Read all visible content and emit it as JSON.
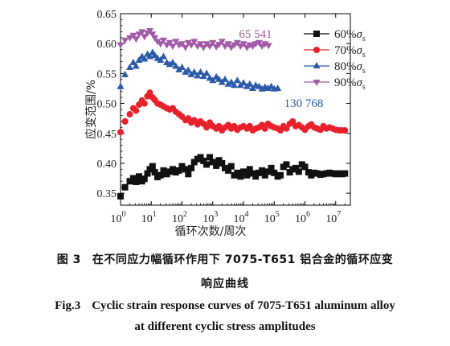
{
  "chart_data": {
    "type": "scatter",
    "title": "",
    "xlabel": "循环次数/周次",
    "ylabel": "应变范围/%",
    "xscale": "log",
    "xlim": [
      1,
      30000000
    ],
    "ylim": [
      0.33,
      0.65
    ],
    "xticks": [
      {
        "value": 1,
        "base": "10",
        "exp": "0"
      },
      {
        "value": 10,
        "base": "10",
        "exp": "1"
      },
      {
        "value": 100,
        "base": "10",
        "exp": "2"
      },
      {
        "value": 1000,
        "base": "10",
        "exp": "3"
      },
      {
        "value": 10000,
        "base": "10",
        "exp": "4"
      },
      {
        "value": 100000,
        "base": "10",
        "exp": "5"
      },
      {
        "value": 1000000,
        "base": "10",
        "exp": "6"
      },
      {
        "value": 10000000,
        "base": "10",
        "exp": "7"
      }
    ],
    "yticks": [
      {
        "value": 0.35,
        "label": "0.35"
      },
      {
        "value": 0.4,
        "label": "0.40"
      },
      {
        "value": 0.45,
        "label": "0.45"
      },
      {
        "value": 0.5,
        "label": "0.50"
      },
      {
        "value": 0.55,
        "label": "0.55"
      },
      {
        "value": 0.6,
        "label": "0.60"
      },
      {
        "value": 0.65,
        "label": "0.65"
      }
    ],
    "grid": false,
    "legend_position": "top-right",
    "annotations": [
      {
        "text": "65 541",
        "near_series": "90%σs",
        "color": "#a05aa6"
      },
      {
        "text": "130 768",
        "near_series": "80%σs",
        "color": "#2a5aa8"
      }
    ],
    "series": [
      {
        "name": "60%σs",
        "label_main": "60%",
        "label_sym": "σ",
        "label_sub": "s",
        "marker": "square",
        "color": "#111111",
        "points": [
          [
            1,
            0.345
          ],
          [
            1.4,
            0.36
          ],
          [
            2,
            0.37
          ],
          [
            2.6,
            0.375
          ],
          [
            3.2,
            0.369
          ],
          [
            4,
            0.378
          ],
          [
            5,
            0.37
          ],
          [
            6,
            0.374
          ],
          [
            7.5,
            0.383
          ],
          [
            9,
            0.39
          ],
          [
            11,
            0.395
          ],
          [
            13,
            0.385
          ],
          [
            16,
            0.377
          ],
          [
            20,
            0.38
          ],
          [
            25,
            0.388
          ],
          [
            32,
            0.382
          ],
          [
            40,
            0.386
          ],
          [
            50,
            0.39
          ],
          [
            63,
            0.385
          ],
          [
            80,
            0.388
          ],
          [
            100,
            0.395
          ],
          [
            130,
            0.39
          ],
          [
            160,
            0.382
          ],
          [
            200,
            0.392
          ],
          [
            250,
            0.402
          ],
          [
            320,
            0.407
          ],
          [
            400,
            0.41
          ],
          [
            500,
            0.404
          ],
          [
            630,
            0.398
          ],
          [
            800,
            0.41
          ],
          [
            1000,
            0.402
          ],
          [
            1300,
            0.396
          ],
          [
            1600,
            0.405
          ],
          [
            2000,
            0.4
          ],
          [
            2500,
            0.392
          ],
          [
            3200,
            0.388
          ],
          [
            4000,
            0.395
          ],
          [
            5000,
            0.38
          ],
          [
            6300,
            0.384
          ],
          [
            8000,
            0.378
          ],
          [
            10000,
            0.386
          ],
          [
            13000,
            0.38
          ],
          [
            16000,
            0.39
          ],
          [
            20000,
            0.383
          ],
          [
            25000,
            0.378
          ],
          [
            32000,
            0.384
          ],
          [
            40000,
            0.388
          ],
          [
            50000,
            0.38
          ],
          [
            63000,
            0.386
          ],
          [
            80000,
            0.392
          ],
          [
            100000,
            0.384
          ],
          [
            130000,
            0.378
          ],
          [
            160000,
            0.38
          ],
          [
            200000,
            0.394
          ],
          [
            250000,
            0.398
          ],
          [
            320000,
            0.385
          ],
          [
            400000,
            0.39
          ],
          [
            500000,
            0.392
          ],
          [
            630000,
            0.386
          ],
          [
            800000,
            0.398
          ],
          [
            1000000,
            0.394
          ],
          [
            1300000,
            0.385
          ],
          [
            1600000,
            0.38
          ],
          [
            2000000,
            0.384
          ],
          [
            2500000,
            0.383
          ],
          [
            3200000,
            0.381
          ],
          [
            4000000,
            0.382
          ],
          [
            5000000,
            0.383
          ],
          [
            6300000,
            0.384
          ],
          [
            8000000,
            0.383
          ],
          [
            10000000,
            0.382
          ],
          [
            13000000,
            0.383
          ],
          [
            16000000,
            0.382
          ],
          [
            20000000,
            0.383
          ]
        ]
      },
      {
        "name": "70%σs",
        "label_main": "70%",
        "label_sym": "σ",
        "label_sub": "s",
        "marker": "circle",
        "color": "#e8202a",
        "points": [
          [
            1,
            0.452
          ],
          [
            1.4,
            0.47
          ],
          [
            2,
            0.482
          ],
          [
            2.6,
            0.492
          ],
          [
            3.2,
            0.488
          ],
          [
            4,
            0.498
          ],
          [
            5,
            0.505
          ],
          [
            6,
            0.5
          ],
          [
            7.5,
            0.512
          ],
          [
            9,
            0.518
          ],
          [
            11,
            0.51
          ],
          [
            13,
            0.506
          ],
          [
            16,
            0.5
          ],
          [
            20,
            0.498
          ],
          [
            25,
            0.495
          ],
          [
            32,
            0.492
          ],
          [
            40,
            0.49
          ],
          [
            50,
            0.492
          ],
          [
            63,
            0.486
          ],
          [
            80,
            0.482
          ],
          [
            100,
            0.478
          ],
          [
            130,
            0.472
          ],
          [
            160,
            0.475
          ],
          [
            200,
            0.468
          ],
          [
            250,
            0.472
          ],
          [
            320,
            0.465
          ],
          [
            400,
            0.47
          ],
          [
            500,
            0.466
          ],
          [
            630,
            0.46
          ],
          [
            800,
            0.468
          ],
          [
            1000,
            0.462
          ],
          [
            1300,
            0.458
          ],
          [
            1600,
            0.462
          ],
          [
            2000,
            0.455
          ],
          [
            2500,
            0.46
          ],
          [
            3200,
            0.464
          ],
          [
            4000,
            0.458
          ],
          [
            5000,
            0.462
          ],
          [
            6300,
            0.456
          ],
          [
            8000,
            0.46
          ],
          [
            10000,
            0.462
          ],
          [
            13000,
            0.458
          ],
          [
            16000,
            0.462
          ],
          [
            20000,
            0.455
          ],
          [
            25000,
            0.458
          ],
          [
            32000,
            0.46
          ],
          [
            40000,
            0.464
          ],
          [
            50000,
            0.458
          ],
          [
            63000,
            0.466
          ],
          [
            80000,
            0.462
          ],
          [
            100000,
            0.46
          ],
          [
            130000,
            0.458
          ],
          [
            160000,
            0.455
          ],
          [
            200000,
            0.462
          ],
          [
            250000,
            0.458
          ],
          [
            320000,
            0.466
          ],
          [
            400000,
            0.47
          ],
          [
            500000,
            0.462
          ],
          [
            630000,
            0.464
          ],
          [
            800000,
            0.46
          ],
          [
            1000000,
            0.456
          ],
          [
            1300000,
            0.462
          ],
          [
            1600000,
            0.465
          ],
          [
            2000000,
            0.46
          ],
          [
            2500000,
            0.458
          ],
          [
            3200000,
            0.456
          ],
          [
            4000000,
            0.462
          ],
          [
            5000000,
            0.458
          ],
          [
            6300000,
            0.46
          ],
          [
            8000000,
            0.458
          ],
          [
            10000000,
            0.456
          ],
          [
            13000000,
            0.455
          ],
          [
            16000000,
            0.455
          ],
          [
            20000000,
            0.455
          ]
        ]
      },
      {
        "name": "80%σs",
        "label_main": "80%",
        "label_sym": "σ",
        "label_sub": "s",
        "marker": "triangle-up",
        "color": "#2a5aa8",
        "points": [
          [
            1,
            0.528
          ],
          [
            1.4,
            0.548
          ],
          [
            2,
            0.56
          ],
          [
            2.6,
            0.568
          ],
          [
            3.2,
            0.562
          ],
          [
            4,
            0.572
          ],
          [
            5,
            0.578
          ],
          [
            6,
            0.574
          ],
          [
            7.5,
            0.582
          ],
          [
            9,
            0.578
          ],
          [
            11,
            0.585
          ],
          [
            13,
            0.58
          ],
          [
            16,
            0.575
          ],
          [
            20,
            0.572
          ],
          [
            25,
            0.578
          ],
          [
            32,
            0.568
          ],
          [
            40,
            0.565
          ],
          [
            50,
            0.568
          ],
          [
            63,
            0.562
          ],
          [
            80,
            0.556
          ],
          [
            100,
            0.56
          ],
          [
            130,
            0.552
          ],
          [
            160,
            0.555
          ],
          [
            200,
            0.548
          ],
          [
            250,
            0.552
          ],
          [
            320,
            0.546
          ],
          [
            400,
            0.552
          ],
          [
            500,
            0.545
          ],
          [
            630,
            0.55
          ],
          [
            800,
            0.542
          ],
          [
            1000,
            0.538
          ],
          [
            1300,
            0.544
          ],
          [
            1600,
            0.54
          ],
          [
            2000,
            0.535
          ],
          [
            2500,
            0.54
          ],
          [
            3200,
            0.532
          ],
          [
            4000,
            0.535
          ],
          [
            5000,
            0.53
          ],
          [
            6300,
            0.538
          ],
          [
            8000,
            0.53
          ],
          [
            10000,
            0.534
          ],
          [
            13000,
            0.528
          ],
          [
            16000,
            0.532
          ],
          [
            20000,
            0.525
          ],
          [
            25000,
            0.53
          ],
          [
            32000,
            0.528
          ],
          [
            40000,
            0.524
          ],
          [
            50000,
            0.527
          ],
          [
            63000,
            0.525
          ],
          [
            80000,
            0.528
          ],
          [
            100000,
            0.524
          ],
          [
            130000,
            0.525
          ]
        ]
      },
      {
        "name": "90%σs",
        "label_main": "90%",
        "label_sym": "σ",
        "label_sub": "s",
        "marker": "triangle-down",
        "color": "#a05aa6",
        "points": [
          [
            1,
            0.598
          ],
          [
            1.4,
            0.606
          ],
          [
            2,
            0.61
          ],
          [
            2.6,
            0.614
          ],
          [
            3.2,
            0.608
          ],
          [
            4,
            0.616
          ],
          [
            5,
            0.62
          ],
          [
            6,
            0.612
          ],
          [
            7.5,
            0.618
          ],
          [
            9,
            0.622
          ],
          [
            11,
            0.616
          ],
          [
            13,
            0.61
          ],
          [
            16,
            0.604
          ],
          [
            20,
            0.6
          ],
          [
            25,
            0.606
          ],
          [
            32,
            0.598
          ],
          [
            40,
            0.602
          ],
          [
            50,
            0.596
          ],
          [
            63,
            0.604
          ],
          [
            80,
            0.598
          ],
          [
            100,
            0.6
          ],
          [
            130,
            0.594
          ],
          [
            160,
            0.602
          ],
          [
            200,
            0.598
          ],
          [
            250,
            0.604
          ],
          [
            320,
            0.596
          ],
          [
            400,
            0.6
          ],
          [
            500,
            0.594
          ],
          [
            630,
            0.6
          ],
          [
            800,
            0.596
          ],
          [
            1000,
            0.602
          ],
          [
            1300,
            0.595
          ],
          [
            1600,
            0.599
          ],
          [
            2000,
            0.604
          ],
          [
            2500,
            0.596
          ],
          [
            3200,
            0.6
          ],
          [
            4000,
            0.594
          ],
          [
            5000,
            0.598
          ],
          [
            6300,
            0.602
          ],
          [
            8000,
            0.596
          ],
          [
            10000,
            0.6
          ],
          [
            13000,
            0.594
          ],
          [
            16000,
            0.598
          ],
          [
            20000,
            0.596
          ],
          [
            25000,
            0.6
          ],
          [
            32000,
            0.602
          ],
          [
            40000,
            0.596
          ],
          [
            50000,
            0.6
          ],
          [
            65541,
            0.597
          ]
        ]
      }
    ]
  },
  "caption": {
    "cn_label": "图 3",
    "cn_line1": "在不同应力幅循环作用下 7075-T651 铝合金的循环应变",
    "cn_line2": "响应曲线",
    "en_label": "Fig.3",
    "en_line1": "Cyclic strain response curves of 7075-T651 aluminum alloy",
    "en_line2": "at different cyclic stress amplitudes"
  }
}
